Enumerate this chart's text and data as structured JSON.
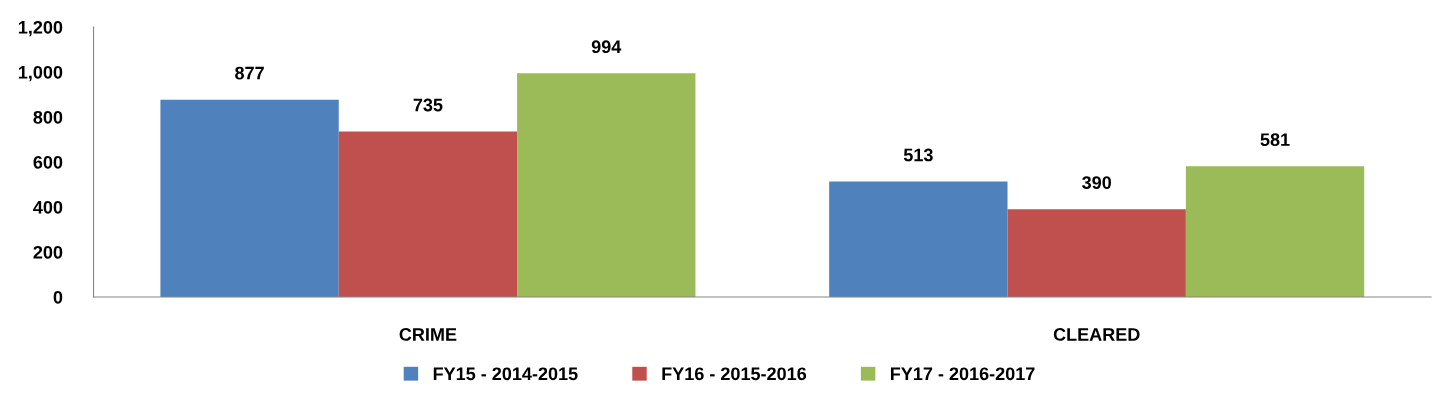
{
  "chart_data": {
    "type": "bar",
    "categories": [
      "CRIME",
      "CLEARED"
    ],
    "series": [
      {
        "name": "FY15 - 2014-2015",
        "color": "#4f81bd",
        "values": [
          877,
          513
        ]
      },
      {
        "name": "FY16 - 2015-2016",
        "color": "#c0504d",
        "values": [
          735,
          390
        ]
      },
      {
        "name": "FY17 - 2016-2017",
        "color": "#9bbb59",
        "values": [
          994,
          581
        ]
      }
    ],
    "ylim": [
      0,
      1200
    ],
    "yticks": [
      0,
      200,
      400,
      600,
      800,
      {
        "value": 1000,
        "label": "1,000"
      },
      {
        "value": 1200,
        "label": "1,200"
      }
    ],
    "data_labels": true,
    "grid": false,
    "legend": "bottom"
  }
}
